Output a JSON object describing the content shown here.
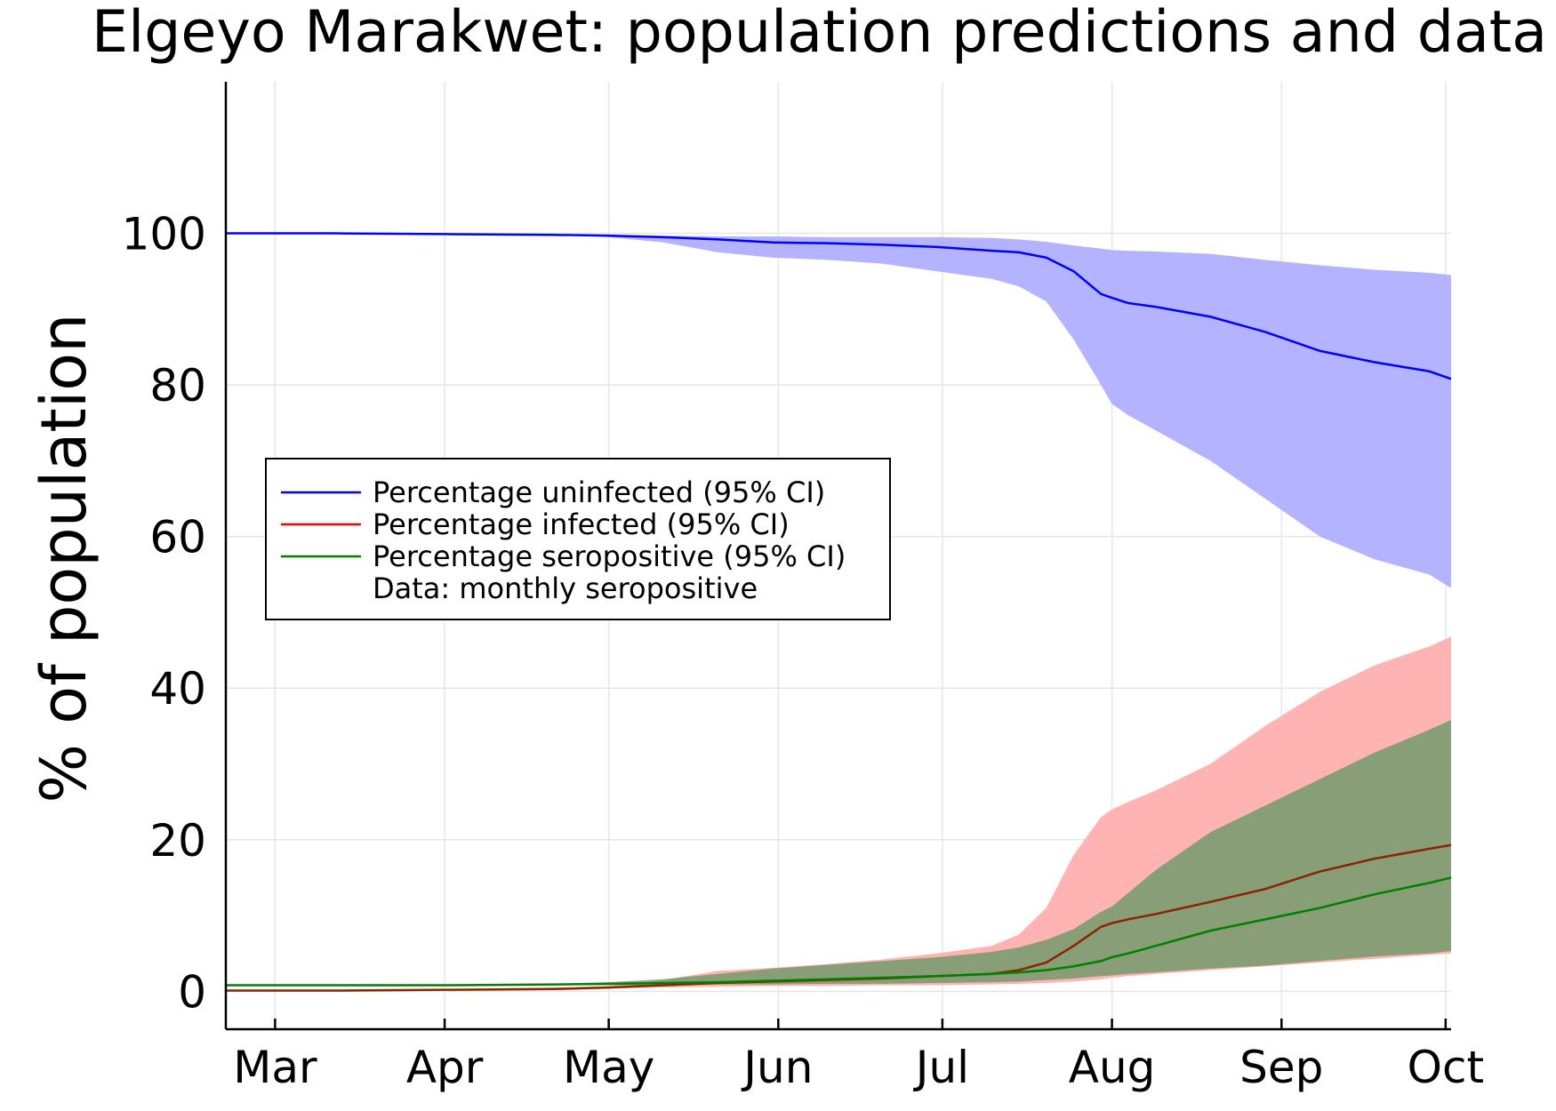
{
  "chart_data": {
    "type": "line",
    "title": "Elgeyo Marakwet: population predictions and data",
    "xlabel": "",
    "ylabel": "% of population",
    "x_ticks": [
      {
        "label": "Mar",
        "day": 9
      },
      {
        "label": "Apr",
        "day": 40
      },
      {
        "label": "May",
        "day": 70
      },
      {
        "label": "Jun",
        "day": 101
      },
      {
        "label": "Jul",
        "day": 131
      },
      {
        "label": "Aug",
        "day": 162
      },
      {
        "label": "Sep",
        "day": 193
      },
      {
        "label": "Oct",
        "day": 223
      }
    ],
    "xlim": [
      0,
      224
    ],
    "ylim": [
      -5,
      120
    ],
    "y_ticks": [
      0,
      20,
      40,
      60,
      80,
      100
    ],
    "grid": true,
    "legend_position": "center-left",
    "legend": [
      {
        "label": "Percentage uninfected (95% CI)",
        "color": "#0000ff",
        "style": "line"
      },
      {
        "label": "Percentage infected (95% CI)",
        "color": "#ff0000",
        "style": "line"
      },
      {
        "label": "Percentage seropositive (95% CI)",
        "color": "#008000",
        "style": "line"
      },
      {
        "label": "Data: monthly seropositive",
        "color": "#000000",
        "style": "none"
      }
    ],
    "series": [
      {
        "name": "Percentage uninfected (95% CI)",
        "color": "#0000ff",
        "band_color": "#b3b3ff",
        "x": [
          0,
          20,
          40,
          60,
          70,
          80,
          90,
          100,
          110,
          120,
          130,
          140,
          145,
          150,
          155,
          160,
          162,
          165,
          170,
          180,
          190,
          200,
          210,
          220,
          224
        ],
        "mean": [
          100,
          100,
          99.9,
          99.8,
          99.7,
          99.5,
          99.2,
          98.8,
          98.7,
          98.5,
          98.2,
          97.7,
          97.5,
          96.8,
          95,
          92,
          91.5,
          90.8,
          90.3,
          89,
          87,
          84.5,
          83,
          81.8,
          80.8
        ],
        "lower": [
          100,
          100,
          99.9,
          99.8,
          99.5,
          98.8,
          97.5,
          96.8,
          96.5,
          96,
          95,
          94,
          93,
          91,
          86,
          80,
          77.5,
          76,
          74,
          70,
          65,
          60,
          57,
          55,
          53.2
        ],
        "upper": [
          100,
          100,
          99.9,
          99.8,
          99.8,
          99.7,
          99.6,
          99.6,
          99.5,
          99.5,
          99.5,
          99.4,
          99.2,
          98.9,
          98.4,
          98,
          97.8,
          97.7,
          97.6,
          97.3,
          96.5,
          95.8,
          95.2,
          94.8,
          94.5
        ]
      },
      {
        "name": "Percentage infected (95% CI)",
        "color": "#ff0000",
        "band_color": "#ffb3b3",
        "x": [
          0,
          20,
          40,
          60,
          70,
          80,
          90,
          100,
          110,
          120,
          130,
          140,
          145,
          150,
          155,
          160,
          162,
          165,
          170,
          180,
          190,
          200,
          210,
          220,
          224
        ],
        "mean": [
          0.1,
          0.1,
          0.2,
          0.3,
          0.5,
          0.8,
          1.1,
          1.3,
          1.5,
          1.7,
          2.0,
          2.3,
          2.8,
          3.8,
          6.0,
          8.5,
          9.0,
          9.5,
          10.2,
          11.8,
          13.5,
          15.8,
          17.5,
          18.8,
          19.3
        ],
        "lower": [
          0.1,
          0.1,
          0.2,
          0.3,
          0.4,
          0.5,
          0.6,
          0.7,
          0.7,
          0.8,
          0.8,
          0.9,
          1.0,
          1.1,
          1.3,
          1.6,
          1.8,
          2.0,
          2.3,
          2.8,
          3.3,
          3.8,
          4.3,
          4.8,
          5.0
        ],
        "upper": [
          0.1,
          0.2,
          0.3,
          0.5,
          0.7,
          1.5,
          2.7,
          3.1,
          3.6,
          4.2,
          5.0,
          6.0,
          7.5,
          11.0,
          18.0,
          23.0,
          24.0,
          25.0,
          26.5,
          30.0,
          35.0,
          39.5,
          43.0,
          45.5,
          46.8
        ]
      },
      {
        "name": "Percentage seropositive (95% CI)",
        "color": "#008000",
        "band_color": "#669966",
        "x": [
          0,
          20,
          40,
          60,
          70,
          80,
          90,
          100,
          110,
          120,
          130,
          140,
          145,
          150,
          155,
          160,
          162,
          165,
          170,
          180,
          190,
          200,
          210,
          220,
          224
        ],
        "mean": [
          0.8,
          0.8,
          0.8,
          0.9,
          1.0,
          1.1,
          1.2,
          1.4,
          1.6,
          1.8,
          2.0,
          2.3,
          2.5,
          2.8,
          3.3,
          4.0,
          4.5,
          5.0,
          6.0,
          8.0,
          9.5,
          11.0,
          12.8,
          14.3,
          15.0
        ],
        "lower": [
          0.8,
          0.8,
          0.8,
          0.8,
          0.8,
          0.8,
          0.9,
          0.9,
          1.0,
          1.0,
          1.1,
          1.2,
          1.3,
          1.5,
          1.7,
          2.0,
          2.1,
          2.3,
          2.5,
          3.0,
          3.4,
          4.0,
          4.6,
          5.0,
          5.3
        ],
        "upper": [
          0.8,
          0.8,
          0.9,
          1.0,
          1.2,
          1.6,
          2.3,
          3.0,
          3.5,
          4.0,
          4.5,
          5.2,
          5.8,
          6.8,
          8.2,
          10.5,
          11.2,
          13.0,
          16.0,
          21.0,
          24.5,
          28.0,
          31.5,
          34.5,
          35.8
        ]
      }
    ]
  }
}
